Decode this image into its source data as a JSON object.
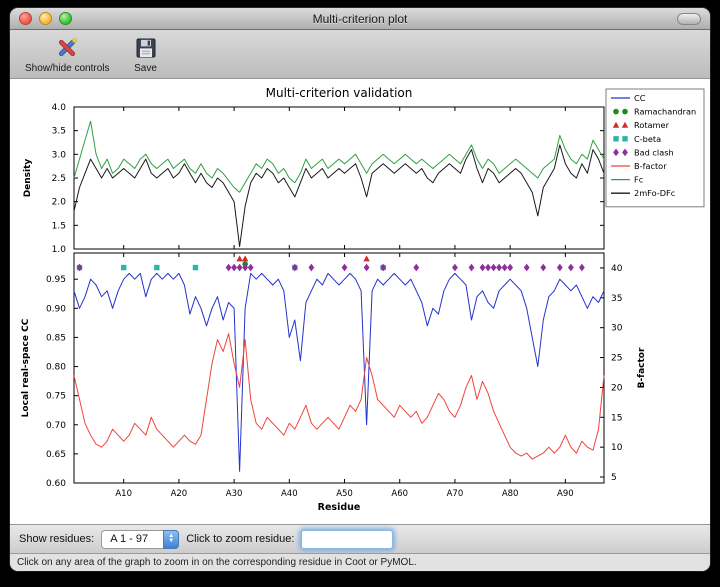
{
  "window": {
    "title": "Multi-criterion plot"
  },
  "toolbar": {
    "items": [
      {
        "label": "Show/hide controls",
        "icon": "tools-icon"
      },
      {
        "label": "Save",
        "icon": "save-icon"
      }
    ]
  },
  "controls": {
    "show_residues_label": "Show residues:",
    "chain_range_value": "A  1 - 97",
    "zoom_label": "Click to zoom residue:",
    "zoom_input_value": ""
  },
  "status_bar": {
    "text": "Click on any area of the graph to zoom in on the corresponding residue in Coot or PyMOL."
  },
  "chart_data": {
    "type": "line",
    "title": "Multi-criterion validation",
    "x_label": "Residue",
    "x_range": [
      1,
      97
    ],
    "x_tick_positions": [
      10,
      20,
      30,
      40,
      50,
      60,
      70,
      80,
      90
    ],
    "x_tick_labels": [
      "A10",
      "A20",
      "A30",
      "A40",
      "A50",
      "A60",
      "A70",
      "A80",
      "A90"
    ],
    "legend_position": "upper-right-outside",
    "grid": false,
    "legend": [
      {
        "label": "CC",
        "type": "line",
        "color": "#2433cc"
      },
      {
        "label": "Ramachandran",
        "type": "circle",
        "color": "#1d8c1d"
      },
      {
        "label": "Rotamer",
        "type": "triangle",
        "color": "#d42a2a"
      },
      {
        "label": "C-beta",
        "type": "square",
        "color": "#2fb3a8"
      },
      {
        "label": "Bad clash",
        "type": "diamond",
        "color": "#8f2f9e"
      },
      {
        "label": "B-factor",
        "type": "line",
        "color": "#f04438"
      },
      {
        "label": "Fc",
        "type": "line",
        "color": "#2fa043"
      },
      {
        "label": "2mFo-DFc",
        "type": "line",
        "color": "#1a1a1a"
      }
    ],
    "top_plot": {
      "y_label": "Density",
      "y_range": [
        1.0,
        4.0
      ],
      "y_ticks": [
        1.0,
        1.5,
        2.0,
        2.5,
        3.0,
        3.5,
        4.0
      ],
      "y_tick_labels": [
        "1.0",
        "1.5",
        "2.0",
        "2.5",
        "3.0",
        "3.5",
        "4.0"
      ],
      "series": [
        {
          "name": "Fc",
          "color": "#2fa043",
          "values": [
            2.5,
            2.9,
            3.3,
            3.7,
            3.0,
            2.7,
            2.9,
            2.6,
            2.7,
            2.9,
            2.8,
            2.7,
            2.9,
            3.0,
            2.8,
            2.7,
            2.8,
            2.9,
            2.7,
            2.8,
            2.9,
            2.7,
            2.6,
            2.8,
            2.6,
            2.5,
            2.7,
            2.6,
            2.45,
            2.3,
            2.2,
            2.4,
            2.6,
            2.8,
            2.7,
            2.9,
            2.8,
            2.6,
            2.7,
            2.5,
            2.4,
            2.6,
            2.9,
            2.7,
            2.8,
            2.9,
            2.7,
            2.8,
            2.9,
            2.8,
            2.9,
            3.0,
            2.8,
            2.6,
            2.8,
            2.9,
            3.0,
            2.9,
            2.8,
            2.9,
            3.0,
            2.9,
            2.8,
            2.9,
            2.8,
            2.7,
            2.8,
            2.9,
            3.0,
            2.9,
            2.8,
            3.0,
            3.2,
            2.9,
            2.7,
            2.9,
            2.8,
            2.6,
            2.7,
            2.8,
            2.9,
            2.8,
            2.7,
            2.6,
            2.5,
            2.7,
            2.8,
            2.9,
            3.4,
            3.1,
            2.9,
            2.8,
            3.0,
            2.9,
            3.3,
            3.1,
            2.9
          ]
        },
        {
          "name": "2mFo-DFc",
          "color": "#1a1a1a",
          "values": [
            1.8,
            2.3,
            2.6,
            2.9,
            2.7,
            2.5,
            2.7,
            2.5,
            2.6,
            2.7,
            2.6,
            2.5,
            2.7,
            2.9,
            2.6,
            2.5,
            2.6,
            2.7,
            2.5,
            2.6,
            2.8,
            2.6,
            2.4,
            2.6,
            2.4,
            2.3,
            2.5,
            2.4,
            2.2,
            2.0,
            1.05,
            1.9,
            2.4,
            2.6,
            2.5,
            2.7,
            2.6,
            2.4,
            2.5,
            2.3,
            2.1,
            2.4,
            2.7,
            2.5,
            2.6,
            2.7,
            2.5,
            2.6,
            2.7,
            2.6,
            2.7,
            2.8,
            2.5,
            2.1,
            2.6,
            2.7,
            2.8,
            2.7,
            2.6,
            2.7,
            2.8,
            2.7,
            2.6,
            2.7,
            2.5,
            2.4,
            2.6,
            2.7,
            2.8,
            2.7,
            2.6,
            2.9,
            3.1,
            2.7,
            2.4,
            2.7,
            2.6,
            2.4,
            2.5,
            2.6,
            2.7,
            2.6,
            2.4,
            2.2,
            1.7,
            2.3,
            2.5,
            2.7,
            3.2,
            2.8,
            2.6,
            2.5,
            2.8,
            2.6,
            3.1,
            2.9,
            2.6
          ]
        }
      ]
    },
    "bottom_plot": {
      "y_label": "Local real-space CC",
      "y_range": [
        0.6,
        0.995
      ],
      "y_ticks": [
        0.6,
        0.65,
        0.7,
        0.75,
        0.8,
        0.85,
        0.9,
        0.95
      ],
      "y_tick_labels": [
        "0.60",
        "0.65",
        "0.70",
        "0.75",
        "0.80",
        "0.85",
        "0.90",
        "0.95"
      ],
      "y2_label": "B-factor",
      "y2_range": [
        4,
        42.5
      ],
      "y2_ticks": [
        5,
        10,
        15,
        20,
        25,
        30,
        35,
        40
      ],
      "y2_tick_labels": [
        "5",
        "10",
        "15",
        "20",
        "25",
        "30",
        "35",
        "40"
      ],
      "series": [
        {
          "name": "CC",
          "color": "#2433cc",
          "axis": "left",
          "values": [
            0.93,
            0.9,
            0.92,
            0.95,
            0.94,
            0.92,
            0.93,
            0.9,
            0.93,
            0.95,
            0.96,
            0.95,
            0.96,
            0.92,
            0.95,
            0.96,
            0.95,
            0.96,
            0.95,
            0.96,
            0.94,
            0.89,
            0.92,
            0.9,
            0.87,
            0.9,
            0.92,
            0.88,
            0.91,
            0.9,
            0.62,
            0.9,
            0.96,
            0.95,
            0.96,
            0.95,
            0.94,
            0.95,
            0.93,
            0.85,
            0.88,
            0.81,
            0.91,
            0.93,
            0.95,
            0.94,
            0.96,
            0.95,
            0.94,
            0.95,
            0.96,
            0.95,
            0.93,
            0.7,
            0.93,
            0.95,
            0.94,
            0.95,
            0.96,
            0.95,
            0.94,
            0.95,
            0.93,
            0.91,
            0.87,
            0.9,
            0.89,
            0.93,
            0.95,
            0.96,
            0.95,
            0.94,
            0.88,
            0.92,
            0.93,
            0.91,
            0.9,
            0.93,
            0.94,
            0.95,
            0.94,
            0.93,
            0.9,
            0.85,
            0.8,
            0.88,
            0.92,
            0.93,
            0.95,
            0.94,
            0.93,
            0.94,
            0.92,
            0.9,
            0.92,
            0.91,
            0.93
          ]
        },
        {
          "name": "B-factor",
          "color": "#f04438",
          "axis": "right",
          "values": [
            22,
            18,
            14,
            12,
            10.5,
            10,
            11,
            13,
            12,
            11,
            12,
            14,
            13,
            12,
            15,
            13,
            12,
            11,
            10,
            11,
            12,
            11,
            10.5,
            12,
            18,
            24,
            28,
            26,
            29,
            24,
            20,
            28,
            18,
            14,
            13,
            15,
            14,
            13,
            12,
            14,
            13,
            15,
            17,
            14,
            13,
            14,
            15,
            14,
            13,
            15,
            17,
            16,
            18,
            25,
            22,
            18,
            17,
            16,
            15,
            17,
            16,
            15,
            16,
            14,
            15,
            17,
            19,
            18,
            16,
            15,
            17,
            20,
            22,
            18,
            21,
            19,
            16,
            14,
            12,
            10,
            9,
            8.5,
            9,
            8,
            8.5,
            9,
            10,
            9,
            10,
            12,
            10,
            9,
            11,
            10,
            9.5,
            13,
            22
          ]
        }
      ],
      "markers": [
        {
          "name": "Ramachandran",
          "shape": "circle",
          "color": "#1d8c1d",
          "y": 0.976,
          "x": [
            32
          ]
        },
        {
          "name": "Rotamer",
          "shape": "triangle",
          "color": "#d42a2a",
          "y": 0.985,
          "x": [
            31,
            32,
            54
          ]
        },
        {
          "name": "C-beta",
          "shape": "square",
          "color": "#2fb3a8",
          "y": 0.97,
          "x": [
            2,
            10,
            16,
            23,
            41,
            57
          ]
        },
        {
          "name": "Bad clash",
          "shape": "diamond",
          "color": "#8f2f9e",
          "y": 0.97,
          "x": [
            2,
            29,
            30,
            31,
            32,
            33,
            41,
            44,
            50,
            54,
            57,
            63,
            70,
            73,
            75,
            76,
            77,
            78,
            79,
            80,
            83,
            86,
            89,
            91,
            93
          ]
        }
      ]
    }
  }
}
